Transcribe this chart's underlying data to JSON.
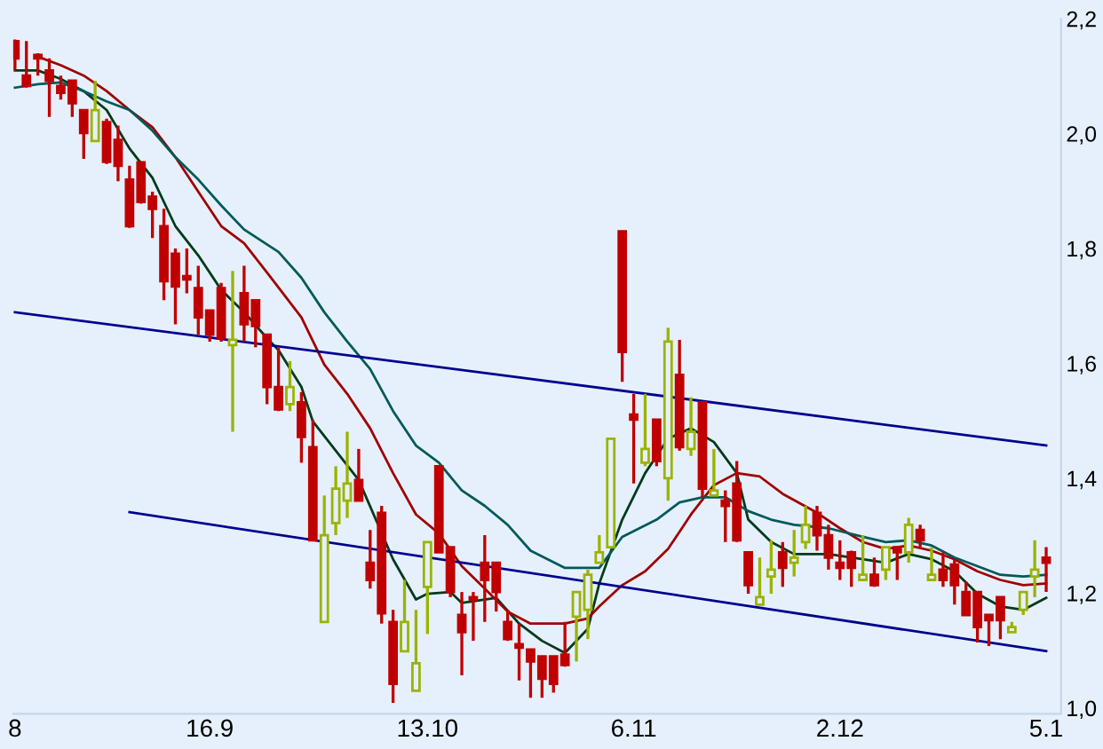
{
  "chart_data": {
    "type": "candlestick",
    "categories": [
      "8",
      null,
      null,
      null,
      null,
      null,
      null,
      null,
      null,
      null,
      null,
      null,
      null,
      null,
      null,
      null,
      null,
      "16.9",
      null,
      null,
      null,
      null,
      null,
      null,
      null,
      null,
      null,
      null,
      null,
      null,
      null,
      null,
      null,
      null,
      null,
      null,
      "13.10",
      null,
      null,
      null,
      null,
      null,
      null,
      null,
      null,
      null,
      null,
      null,
      null,
      null,
      null,
      null,
      null,
      null,
      "6.11",
      null,
      null,
      null,
      null,
      null,
      null,
      null,
      null,
      null,
      null,
      null,
      null,
      null,
      null,
      null,
      null,
      null,
      "2.12",
      null,
      null,
      null,
      null,
      null,
      null,
      null,
      null,
      null,
      null,
      null,
      null,
      null,
      null,
      null,
      null,
      null,
      "5.1"
    ],
    "ohlc": [
      [
        2.161,
        2.164,
        2.11,
        2.131
      ],
      [
        2.101,
        2.161,
        2.08,
        2.083
      ],
      [
        2.137,
        2.14,
        2.101,
        2.131
      ],
      [
        2.11,
        2.131,
        2.029,
        2.092
      ],
      [
        2.083,
        2.101,
        2.059,
        2.071
      ],
      [
        2.092,
        2.092,
        2.029,
        2.053
      ],
      [
        2.041,
        2.041,
        1.956,
        2.001
      ],
      [
        1.987,
        2.092,
        1.987,
        2.041
      ],
      [
        2.02,
        2.026,
        1.947,
        1.951
      ],
      [
        1.989,
        2.014,
        1.917,
        1.944
      ],
      [
        1.92,
        1.944,
        1.836,
        1.839
      ],
      [
        1.95,
        1.95,
        1.878,
        1.881
      ],
      [
        1.89,
        1.899,
        1.818,
        1.869
      ],
      [
        1.839,
        1.869,
        1.71,
        1.743
      ],
      [
        1.791,
        1.8,
        1.668,
        1.734
      ],
      [
        1.752,
        1.8,
        1.722,
        1.746
      ],
      [
        1.731,
        1.77,
        1.65,
        1.68
      ],
      [
        1.692,
        1.692,
        1.638,
        1.65
      ],
      [
        1.731,
        1.74,
        1.638,
        1.644
      ],
      [
        1.632,
        1.761,
        1.481,
        1.641
      ],
      [
        1.722,
        1.77,
        1.638,
        1.668
      ],
      [
        1.71,
        1.71,
        1.628,
        1.665
      ],
      [
        1.65,
        1.65,
        1.529,
        1.559
      ],
      [
        1.559,
        1.628,
        1.517,
        1.52
      ],
      [
        1.529,
        1.604,
        1.517,
        1.559
      ],
      [
        1.532,
        1.55,
        1.427,
        1.472
      ],
      [
        1.454,
        1.502,
        1.292,
        1.292
      ],
      [
        1.15,
        1.37,
        1.15,
        1.301
      ],
      [
        1.322,
        1.421,
        1.301,
        1.382
      ],
      [
        1.361,
        1.481,
        1.331,
        1.391
      ],
      [
        1.397,
        1.451,
        1.361,
        1.361
      ],
      [
        1.253,
        1.31,
        1.208,
        1.223
      ],
      [
        1.34,
        1.352,
        1.147,
        1.165
      ],
      [
        1.15,
        1.171,
        1.009,
        1.042
      ],
      [
        1.099,
        1.223,
        1.099,
        1.15
      ],
      [
        1.03,
        1.171,
        1.03,
        1.078
      ],
      [
        1.211,
        1.289,
        1.129,
        1.289
      ],
      [
        1.421,
        1.421,
        1.271,
        1.271
      ],
      [
        1.28,
        1.28,
        1.193,
        1.202
      ],
      [
        1.162,
        1.202,
        1.057,
        1.132
      ],
      [
        1.193,
        1.202,
        1.117,
        1.189
      ],
      [
        1.253,
        1.301,
        1.15,
        1.223
      ],
      [
        1.253,
        1.253,
        1.168,
        1.202
      ],
      [
        1.15,
        1.171,
        1.117,
        1.12
      ],
      [
        1.111,
        1.147,
        1.048,
        1.105
      ],
      [
        1.102,
        1.102,
        1.018,
        1.081
      ],
      [
        1.09,
        1.09,
        1.018,
        1.051
      ],
      [
        1.09,
        1.09,
        1.027,
        1.042
      ],
      [
        1.093,
        1.15,
        1.072,
        1.075
      ],
      [
        1.159,
        1.202,
        1.081,
        1.202
      ],
      [
        1.171,
        1.241,
        1.12,
        1.232
      ],
      [
        1.253,
        1.301,
        1.253,
        1.271
      ],
      [
        1.28,
        1.469,
        1.28,
        1.469
      ],
      [
        1.83,
        1.83,
        1.568,
        1.62
      ],
      [
        1.511,
        1.547,
        1.391,
        1.502
      ],
      [
        1.427,
        1.547,
        1.421,
        1.451
      ],
      [
        1.502,
        1.502,
        1.421,
        1.43
      ],
      [
        1.4,
        1.662,
        1.361,
        1.638
      ],
      [
        1.58,
        1.641,
        1.448,
        1.454
      ],
      [
        1.451,
        1.541,
        1.439,
        1.481
      ],
      [
        1.532,
        1.532,
        1.367,
        1.382
      ],
      [
        1.37,
        1.451,
        1.37,
        1.379
      ],
      [
        1.361,
        1.379,
        1.289,
        1.352
      ],
      [
        1.391,
        1.43,
        1.289,
        1.292
      ],
      [
        1.271,
        1.271,
        1.199,
        1.214
      ],
      [
        1.18,
        1.262,
        1.18,
        1.193
      ],
      [
        1.229,
        1.292,
        1.199,
        1.241
      ],
      [
        1.271,
        1.289,
        1.211,
        1.244
      ],
      [
        1.253,
        1.31,
        1.229,
        1.262
      ],
      [
        1.289,
        1.352,
        1.277,
        1.319
      ],
      [
        1.34,
        1.352,
        1.274,
        1.301
      ],
      [
        1.301,
        1.319,
        1.241,
        1.262
      ],
      [
        1.253,
        1.292,
        1.223,
        1.244
      ],
      [
        1.271,
        1.274,
        1.211,
        1.244
      ],
      [
        1.223,
        1.301,
        1.223,
        1.232
      ],
      [
        1.232,
        1.262,
        1.211,
        1.214
      ],
      [
        1.241,
        1.28,
        1.223,
        1.28
      ],
      [
        1.28,
        1.28,
        1.223,
        1.271
      ],
      [
        1.271,
        1.331,
        1.253,
        1.319
      ],
      [
        1.31,
        1.319,
        1.28,
        1.292
      ],
      [
        1.223,
        1.28,
        1.223,
        1.232
      ],
      [
        1.241,
        1.271,
        1.211,
        1.223
      ],
      [
        1.25,
        1.259,
        1.18,
        1.214
      ],
      [
        1.202,
        1.22,
        1.162,
        1.162
      ],
      [
        1.202,
        1.202,
        1.114,
        1.141
      ],
      [
        1.162,
        1.162,
        1.108,
        1.153
      ],
      [
        1.193,
        1.193,
        1.12,
        1.153
      ],
      [
        1.132,
        1.15,
        1.132,
        1.141
      ],
      [
        1.171,
        1.202,
        1.162,
        1.202
      ],
      [
        1.229,
        1.292,
        1.193,
        1.241
      ],
      [
        1.262,
        1.28,
        1.202,
        1.253
      ]
    ],
    "colors": [
      "#c00000",
      "#c00000",
      "#c00000",
      "#c00000",
      "#c00000",
      "#c00000",
      "#c00000",
      "#9bb300",
      "#c00000",
      "#c00000",
      "#c00000",
      "#c00000",
      "#c00000",
      "#c00000",
      "#c00000",
      "#c00000",
      "#c00000",
      "#c00000",
      "#c00000",
      "#9bb300",
      "#c00000",
      "#c00000",
      "#c00000",
      "#c00000",
      "#9bb300",
      "#c00000",
      "#c00000",
      "#9bb300",
      "#9bb300",
      "#9bb300",
      "#c00000",
      "#c00000",
      "#c00000",
      "#c00000",
      "#9bb300",
      "#9bb300",
      "#9bb300",
      "#c00000",
      "#c00000",
      "#c00000",
      "#c00000",
      "#c00000",
      "#c00000",
      "#c00000",
      "#c00000",
      "#c00000",
      "#c00000",
      "#c00000",
      "#c00000",
      "#9bb300",
      "#9bb300",
      "#9bb300",
      "#9bb300",
      "#c00000",
      "#c00000",
      "#9bb300",
      "#c00000",
      "#9bb300",
      "#c00000",
      "#9bb300",
      "#c00000",
      "#9bb300",
      "#c00000",
      "#c00000",
      "#c00000",
      "#9bb300",
      "#9bb300",
      "#c00000",
      "#9bb300",
      "#9bb300",
      "#c00000",
      "#c00000",
      "#c00000",
      "#c00000",
      "#9bb300",
      "#c00000",
      "#9bb300",
      "#c00000",
      "#9bb300",
      "#c00000",
      "#9bb300",
      "#c00000",
      "#c00000",
      "#c00000",
      "#c00000",
      "#c00000",
      "#c00000",
      "#9bb300",
      "#9bb300",
      "#9bb300",
      "#c00000"
    ],
    "series": [
      {
        "type": "line",
        "color": "#003a1a",
        "values": [
          2.11,
          null,
          2.11,
          null,
          2.095,
          null,
          2.074,
          null,
          2.041,
          null,
          1.974,
          null,
          1.923,
          null,
          1.839,
          null,
          1.788,
          null,
          1.728,
          null,
          1.689,
          null,
          1.644,
          1.623,
          null,
          1.559,
          1.499,
          null,
          1.448,
          null,
          1.397,
          null,
          null,
          1.259,
          null,
          1.189,
          1.199,
          null,
          1.202,
          1.183,
          null,
          1.189,
          1.192,
          null,
          1.147,
          null,
          1.117,
          null,
          1.096,
          null,
          1.138,
          1.217,
          null,
          1.328,
          null,
          1.409,
          null,
          1.469,
          null,
          1.487,
          null,
          1.463,
          null,
          1.409,
          1.328,
          null,
          1.289,
          null,
          1.268,
          null,
          null,
          1.268,
          null,
          null,
          1.259,
          null,
          1.253,
          null,
          1.268,
          null,
          1.259,
          null,
          1.238,
          null,
          1.199,
          null,
          1.177,
          null,
          1.171,
          null,
          1.192
        ]
      },
      {
        "type": "line",
        "color": "#a00000",
        "values": [
          null,
          null,
          2.134,
          null,
          2.119,
          null,
          2.101,
          null,
          2.074,
          null,
          2.041,
          null,
          2.011,
          null,
          1.959,
          null,
          1.899,
          null,
          1.839,
          null,
          1.809,
          null,
          1.758,
          null,
          null,
          1.68,
          null,
          1.598,
          null,
          1.547,
          null,
          1.487,
          null,
          1.409,
          null,
          1.337,
          null,
          1.304,
          null,
          1.247,
          null,
          1.208,
          null,
          1.168,
          null,
          1.147,
          null,
          null,
          1.147,
          null,
          1.156,
          1.177,
          null,
          1.214,
          null,
          1.238,
          null,
          1.277,
          null,
          1.337,
          null,
          1.388,
          null,
          1.409,
          null,
          1.403,
          null,
          1.373,
          null,
          null,
          1.34,
          null,
          1.313,
          null,
          1.289,
          null,
          1.277,
          null,
          1.283,
          null,
          1.274,
          null,
          1.259,
          null,
          1.238,
          null,
          1.223,
          null,
          1.214,
          null,
          1.217
        ]
      },
      {
        "type": "line",
        "color": "#005a5a",
        "values": [
          2.08,
          null,
          2.086,
          null,
          2.089,
          null,
          2.074,
          null,
          2.056,
          null,
          2.041,
          null,
          2.005,
          null,
          1.959,
          null,
          1.92,
          null,
          1.875,
          null,
          1.833,
          null,
          null,
          1.794,
          null,
          1.749,
          null,
          1.689,
          null,
          1.638,
          null,
          1.59,
          null,
          1.517,
          null,
          1.457,
          null,
          1.427,
          null,
          1.379,
          null,
          1.352,
          null,
          1.319,
          null,
          1.274,
          null,
          null,
          1.244,
          null,
          null,
          1.244,
          null,
          1.298,
          null,
          null,
          1.328,
          null,
          1.358,
          null,
          1.367,
          null,
          1.367,
          null,
          1.343,
          null,
          1.328,
          null,
          1.319,
          null,
          null,
          1.313,
          null,
          null,
          1.298,
          null,
          1.289,
          null,
          1.292,
          null,
          1.283,
          null,
          1.262,
          null,
          1.247,
          null,
          1.232,
          null,
          1.229,
          null,
          1.232
        ]
      },
      {
        "type": "line",
        "color": "#000090",
        "values": [
          1.689,
          null,
          null,
          null,
          null,
          null,
          null,
          null,
          null,
          null,
          null,
          null,
          null,
          null,
          null,
          null,
          null,
          null,
          null,
          null,
          null,
          null,
          null,
          null,
          null,
          null,
          null,
          null,
          null,
          null,
          null,
          null,
          null,
          null,
          null,
          null,
          null,
          null,
          null,
          null,
          null,
          null,
          null,
          null,
          null,
          null,
          null,
          null,
          null,
          null,
          null,
          null,
          null,
          null,
          null,
          null,
          null,
          null,
          null,
          null,
          null,
          null,
          null,
          null,
          null,
          null,
          null,
          null,
          null,
          null,
          null,
          null,
          null,
          null,
          null,
          null,
          null,
          null,
          null,
          null,
          null,
          null,
          null,
          null,
          null,
          null,
          null,
          null,
          null,
          null,
          1.457
        ]
      },
      {
        "type": "line",
        "color": "#000090",
        "values": [
          null,
          null,
          null,
          null,
          null,
          null,
          null,
          null,
          null,
          null,
          1.341,
          null,
          null,
          null,
          null,
          null,
          null,
          null,
          null,
          null,
          null,
          null,
          null,
          null,
          null,
          null,
          null,
          null,
          null,
          null,
          null,
          null,
          null,
          null,
          null,
          null,
          null,
          null,
          null,
          null,
          null,
          null,
          null,
          null,
          null,
          null,
          null,
          null,
          null,
          null,
          null,
          null,
          null,
          null,
          null,
          null,
          null,
          null,
          null,
          null,
          null,
          null,
          null,
          null,
          null,
          null,
          null,
          null,
          null,
          null,
          null,
          null,
          null,
          null,
          null,
          null,
          null,
          null,
          null,
          null,
          null,
          null,
          null,
          null,
          null,
          null,
          null,
          null,
          null,
          null,
          1.099
        ]
      }
    ],
    "ylim": [
      0.99,
      2.2
    ],
    "yticks": [
      {
        "value": 1.0,
        "label": "1,0"
      },
      {
        "value": 1.2,
        "label": "1,2"
      },
      {
        "value": 1.4,
        "label": "1,4"
      },
      {
        "value": 1.6,
        "label": "1,6"
      },
      {
        "value": 1.8,
        "label": "1,8"
      },
      {
        "value": 2.0,
        "label": "2,0"
      },
      {
        "value": 2.2,
        "label": "2,2"
      }
    ]
  }
}
